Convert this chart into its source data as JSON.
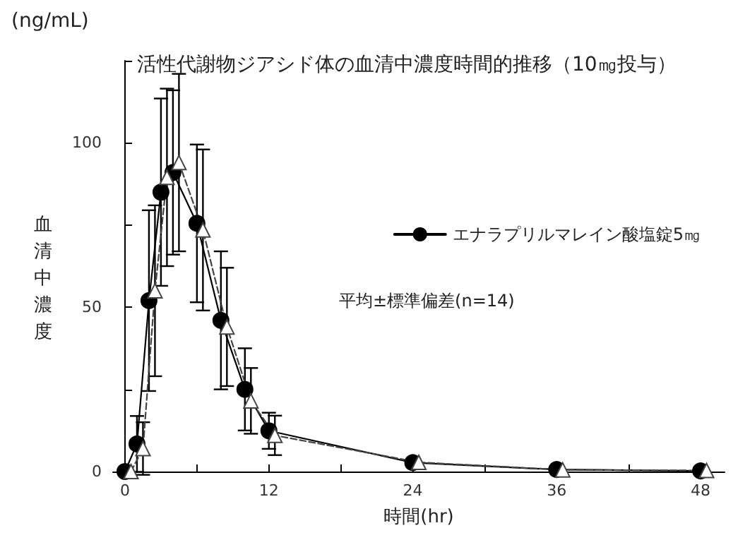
{
  "chart_data": {
    "type": "line",
    "title": "活性代謝物ジアシド体の血清中濃度時間的推移（10㎎投与）",
    "xlabel": "時間(hr)",
    "ylabel": "血清中濃度",
    "annotations": [
      "(ng/mL)",
      "平均±標準偏差(n=14)"
    ],
    "x": [
      0,
      1,
      2,
      3,
      4,
      6,
      8,
      10,
      12,
      24,
      36,
      48
    ],
    "series": [
      {
        "name": "エナラプリルマレイン酸塩錠5㎎",
        "color": "#000000",
        "marker": "circle",
        "line_style": "solid",
        "values": [
          0,
          8.4,
          52,
          85,
          91,
          75.5,
          46,
          25,
          12.4,
          2.7,
          0.6,
          0.2
        ],
        "errors": [
          null,
          8.5,
          27.5,
          28.5,
          25,
          24,
          21,
          12.5,
          5.5,
          0.8,
          1,
          null
        ]
      },
      {
        "color": "#444444",
        "marker": "triangle",
        "line_style": "dashed",
        "x": [
          0.5,
          1.5,
          2.5,
          3.5,
          4.5,
          6.5,
          8.5,
          10.5,
          12.5,
          24.5,
          36.5,
          48.5
        ],
        "values": [
          0,
          7,
          55,
          89.5,
          94,
          73.5,
          44,
          21.5,
          11,
          2.8,
          0.5,
          0.3
        ],
        "errors": [
          null,
          8,
          26,
          27,
          27,
          24.5,
          18,
          10,
          6,
          null,
          null,
          null
        ]
      }
    ],
    "xlim": [
      -1,
      50
    ],
    "xticks": [
      0,
      {
        "value": 6,
        "label": null
      },
      12,
      {
        "value": 18,
        "label": null
      },
      24,
      {
        "value": 30,
        "label": null
      },
      36,
      {
        "value": 42,
        "label": null
      },
      48
    ],
    "ylim": [
      0,
      125
    ],
    "yticks": [
      0,
      {
        "value": 25,
        "label": null
      },
      50,
      {
        "value": 75,
        "label": null
      },
      100,
      {
        "value": 125,
        "label": null
      }
    ],
    "grid": false,
    "legend": "right"
  }
}
